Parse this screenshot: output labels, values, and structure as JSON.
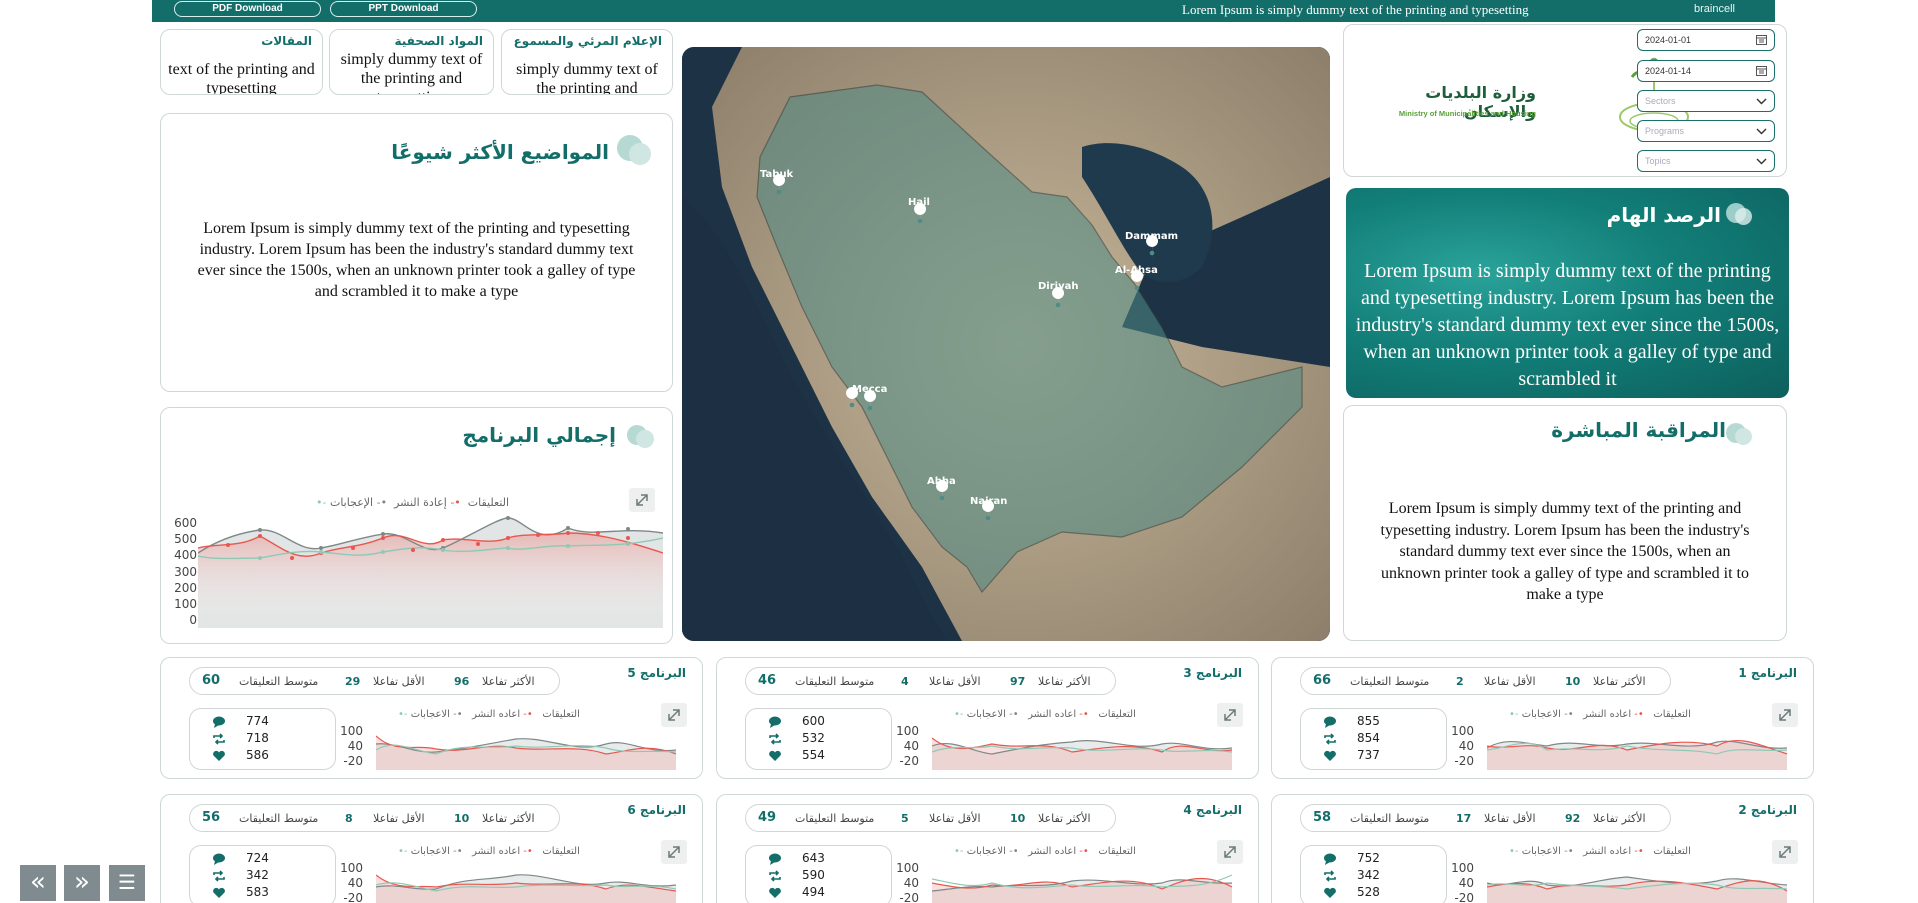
{
  "topbar": {
    "pdf_label": "PDF Download",
    "ppt_label": "PPT Download",
    "marquee": "Lorem Ipsum is simply dummy text of the printing and typesetting",
    "brand": "braincell"
  },
  "tabs": [
    {
      "title": "المقالات",
      "body": "text of the printing and typesetting"
    },
    {
      "title": "المواد الصحفية",
      "body": "simply dummy text of the printing and typesetting"
    },
    {
      "title": "الإعلام المرئي والمسموع",
      "body": "simply dummy text of the printing and"
    }
  ],
  "trending": {
    "title": "المواضيع الأكثر شيوعًا",
    "body": "Lorem Ipsum is simply dummy text of the printing and typesetting industry. Lorem Ipsum has been the industry's standard dummy text ever since the 1500s, when an unknown printer took a galley of type and scrambled it to make a type"
  },
  "program_total": {
    "title": "إجمالي البرنامج",
    "legend": [
      "الإعجابات",
      "إعادة النشر",
      "التعليقات"
    ],
    "y_ticks": [
      "600",
      "500",
      "400",
      "300",
      "200",
      "100",
      "0"
    ]
  },
  "map": {
    "cities": [
      "Tabuk",
      "Hail",
      "Dammam",
      "Al-Ahsa",
      "Diriyah",
      "Mecca",
      "Abha",
      "Najran"
    ]
  },
  "ministry": {
    "name_ar": "وزارة البلديات والإسكان",
    "name_en": "Ministry of Municipalities and Housing"
  },
  "filters": {
    "date_from": "2024-01-01",
    "date_to": "2024-01-14",
    "sectors": "Sectors",
    "programs": "Programs",
    "topics": "Topics"
  },
  "hero": {
    "title": "الرصد الهام",
    "body": "Lorem Ipsum is simply dummy text of the printing and typesetting industry. Lorem Ipsum has been the industry's standard dummy text ever since the 1500s, when an unknown printer took a galley of type and scrambled it"
  },
  "live": {
    "title": "المراقبة المباشرة",
    "body": "Lorem Ipsum is simply dummy text of the printing and typesetting industry. Lorem Ipsum has been the industry's standard dummy text ever since the 1500s, when an unknown printer took a galley of type and scrambled it to make a type"
  },
  "program_labels": {
    "most": "الأكثر تفاعلا",
    "least": "الأقل تفاعلا",
    "avg": "متوسط التعليقات",
    "legend": [
      "الاعجابات",
      "اعاده النشر",
      "التعليقات"
    ],
    "y_ticks": [
      "100",
      "40",
      "-20"
    ]
  },
  "programs": [
    {
      "title": "البرنامج 5",
      "most": "96",
      "least": "29",
      "avg": "60",
      "comments": "774",
      "reposts": "718",
      "likes": "586"
    },
    {
      "title": "البرنامج 3",
      "most": "97",
      "least": "4",
      "avg": "46",
      "comments": "600",
      "reposts": "532",
      "likes": "554"
    },
    {
      "title": "البرنامج 1",
      "most": "10",
      "least": "2",
      "avg": "66",
      "comments": "855",
      "reposts": "854",
      "likes": "737"
    },
    {
      "title": "البرنامج 6",
      "most": "10",
      "least": "8",
      "avg": "56",
      "comments": "724",
      "reposts": "342",
      "likes": "583"
    },
    {
      "title": "البرنامج 4",
      "most": "10",
      "least": "5",
      "avg": "49",
      "comments": "643",
      "reposts": "590",
      "likes": "494"
    },
    {
      "title": "البرنامج 2",
      "most": "92",
      "least": "17",
      "avg": "58",
      "comments": "752",
      "reposts": "342",
      "likes": "528"
    }
  ],
  "nav": {
    "prev": "«",
    "next": "»",
    "menu": "☰"
  },
  "colors": {
    "primary": "#136e6a",
    "likes": "#7f8888",
    "reposts": "#e8574f",
    "comments": "#8fc9b6"
  }
}
